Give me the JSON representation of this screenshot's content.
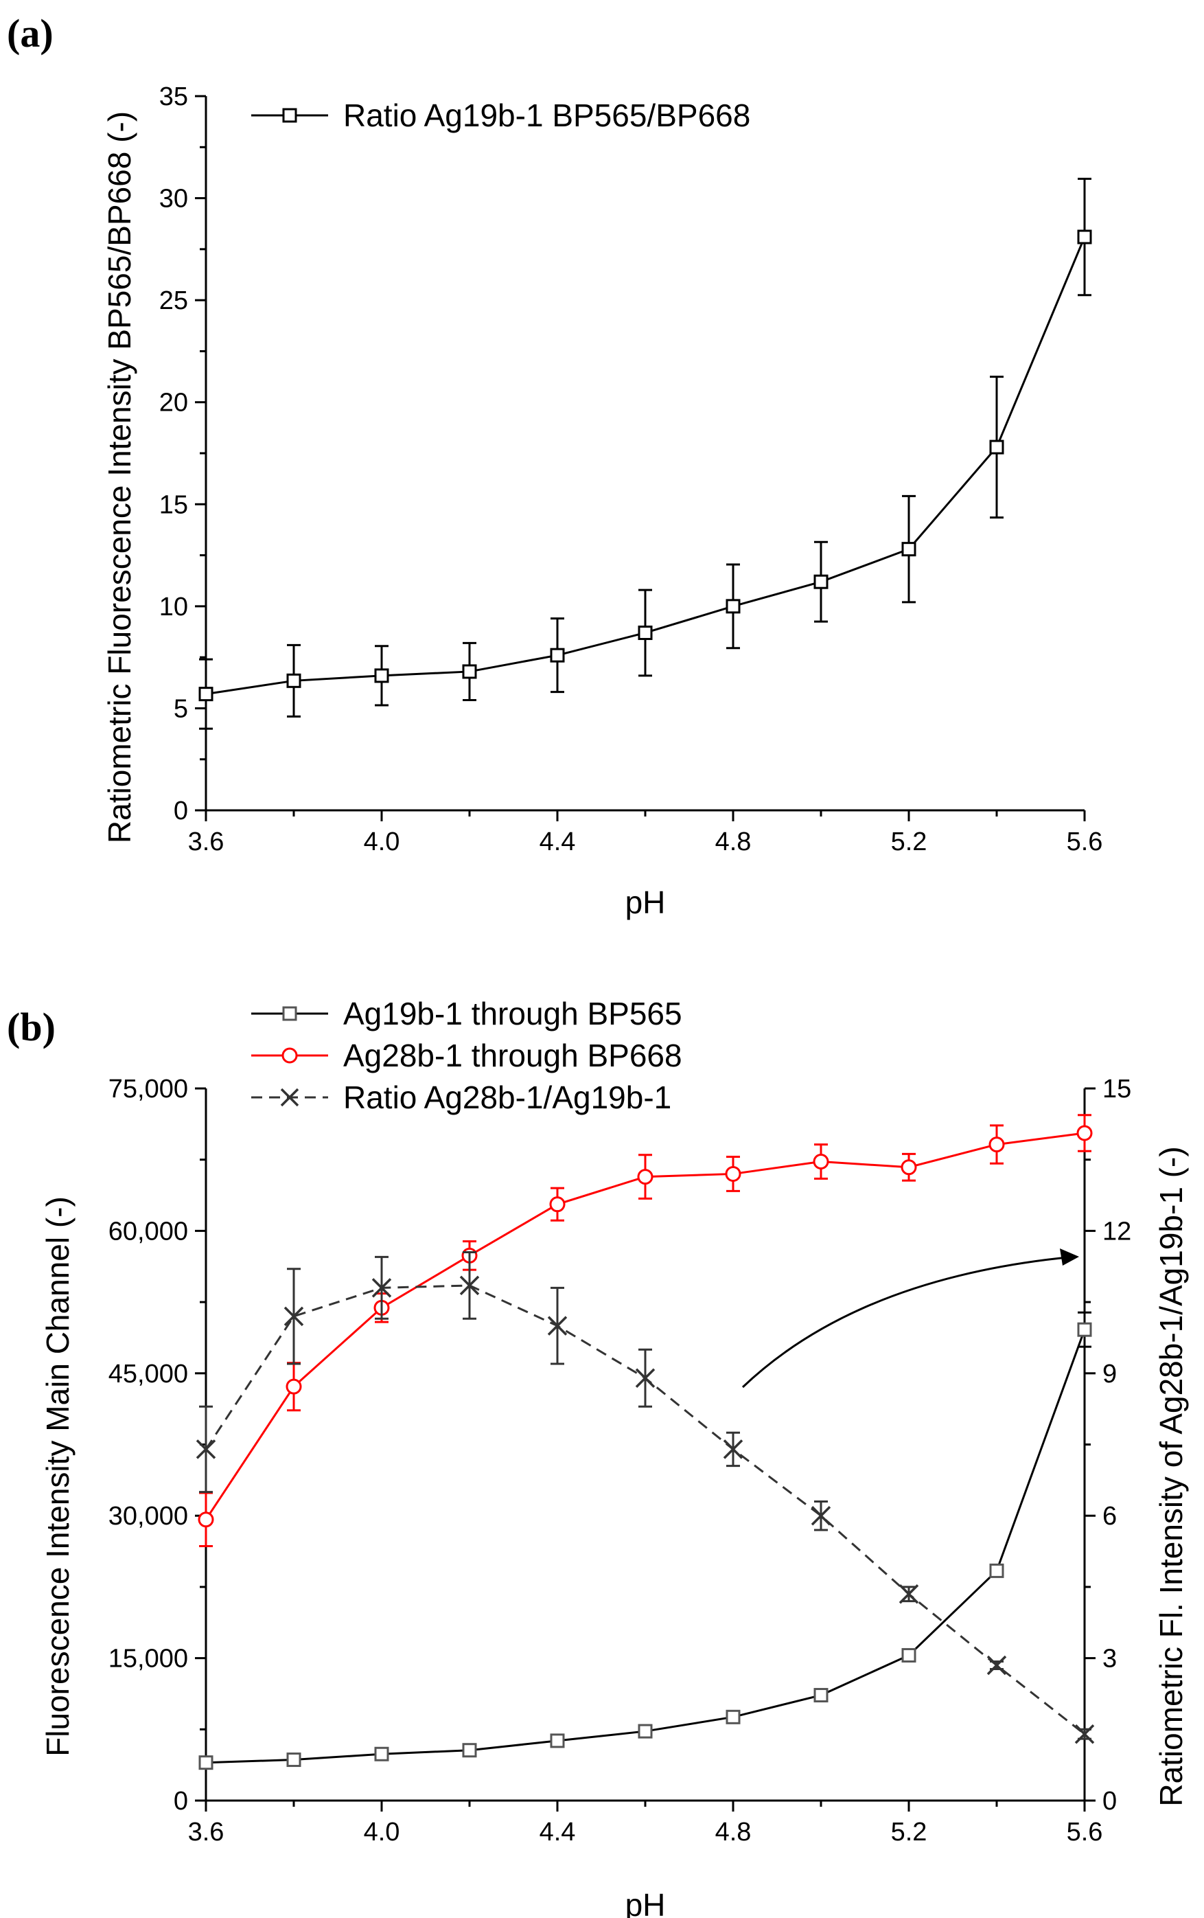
{
  "chart_data": [
    {
      "panel_label": "(a)",
      "type": "line",
      "xlabel": "pH",
      "ylabel": "Ratiometric Fluorescence Intensity BP565/BP668 (-)",
      "xlim": [
        3.6,
        5.6
      ],
      "ylim": [
        0,
        35
      ],
      "x_ticks": [
        "3.6",
        "4.0",
        "4.4",
        "4.8",
        "5.2",
        "5.6"
      ],
      "x_tick_values": [
        3.6,
        4.0,
        4.4,
        4.8,
        5.2,
        5.6
      ],
      "y_ticks": [
        "0",
        "5",
        "10",
        "15",
        "20",
        "25",
        "30",
        "35"
      ],
      "y_tick_values": [
        0,
        5,
        10,
        15,
        20,
        25,
        30,
        35
      ],
      "legend_position": "top-left",
      "series": [
        {
          "name": "Ratio Ag19b-1 BP565/BP668",
          "color": "#000000",
          "marker": "square",
          "line_style": "solid",
          "x": [
            3.6,
            3.8,
            4.0,
            4.2,
            4.4,
            4.6,
            4.8,
            5.0,
            5.2,
            5.4,
            5.6
          ],
          "y": [
            5.7,
            6.35,
            6.6,
            6.8,
            7.6,
            8.7,
            10.0,
            11.2,
            12.8,
            17.8,
            28.1
          ],
          "err": [
            1.7,
            1.75,
            1.45,
            1.4,
            1.8,
            2.1,
            2.05,
            1.95,
            2.6,
            3.45,
            2.85
          ]
        }
      ]
    },
    {
      "panel_label": "(b)",
      "type": "line",
      "xlabel": "pH",
      "ylabel": "Fluorescence Intensity Main Channel (-)",
      "y2label": "Ratiometric Fl. Intensity of Ag28b-1/Ag19b-1 (-)",
      "xlim": [
        3.6,
        5.6
      ],
      "ylim": [
        0,
        75000
      ],
      "y2lim": [
        0,
        15
      ],
      "x_ticks": [
        "3.6",
        "4.0",
        "4.4",
        "4.8",
        "5.2",
        "5.6"
      ],
      "x_tick_values": [
        3.6,
        4.0,
        4.4,
        4.8,
        5.2,
        5.6
      ],
      "y_ticks": [
        "0",
        "15,000",
        "30,000",
        "45,000",
        "60,000",
        "75,000"
      ],
      "y_tick_values": [
        0,
        15000,
        30000,
        45000,
        60000,
        75000
      ],
      "y2_ticks": [
        "0",
        "3",
        "6",
        "9",
        "12",
        "15"
      ],
      "y2_tick_values": [
        0,
        3,
        6,
        9,
        12,
        15
      ],
      "legend_position": "top-left",
      "annotations": [
        "curved arrow pointing to right axis"
      ],
      "series": [
        {
          "name": "Ag19b-1 through BP565",
          "color": "#000000",
          "marker_color": "#555555",
          "marker": "square",
          "line_style": "solid",
          "axis": "left",
          "x": [
            3.6,
            3.8,
            4.0,
            4.2,
            4.4,
            4.6,
            4.8,
            5.0,
            5.2,
            5.4,
            5.6
          ],
          "y": [
            4000,
            4300,
            4900,
            5300,
            6300,
            7300,
            8800,
            11100,
            15300,
            24200,
            49600
          ],
          "err": [
            200,
            200,
            250,
            300,
            300,
            350,
            400,
            450,
            500,
            600,
            1800
          ]
        },
        {
          "name": "Ag28b-1 through BP668",
          "color": "#ff0000",
          "marker": "circle",
          "line_style": "solid",
          "axis": "left",
          "x": [
            3.6,
            3.8,
            4.0,
            4.2,
            4.4,
            4.6,
            4.8,
            5.0,
            5.2,
            5.4,
            5.6
          ],
          "y": [
            29600,
            43600,
            51900,
            57400,
            62800,
            65700,
            66000,
            67300,
            66700,
            69100,
            70300
          ],
          "err": [
            2800,
            2500,
            1500,
            1500,
            1700,
            2300,
            1800,
            1800,
            1400,
            2000,
            1900
          ]
        },
        {
          "name": "Ratio Ag28b-1/Ag19b-1",
          "color": "#333333",
          "marker": "x",
          "line_style": "dashed",
          "axis": "right",
          "x": [
            3.6,
            3.8,
            4.0,
            4.2,
            4.4,
            4.6,
            4.8,
            5.0,
            5.2,
            5.4,
            5.6
          ],
          "y": [
            7.4,
            10.2,
            10.8,
            10.85,
            10.0,
            8.9,
            7.4,
            6.0,
            4.35,
            2.85,
            1.4
          ],
          "err": [
            0.9,
            1.0,
            0.65,
            0.7,
            0.8,
            0.6,
            0.35,
            0.3,
            0.15,
            0.08,
            0.1
          ]
        }
      ]
    }
  ]
}
